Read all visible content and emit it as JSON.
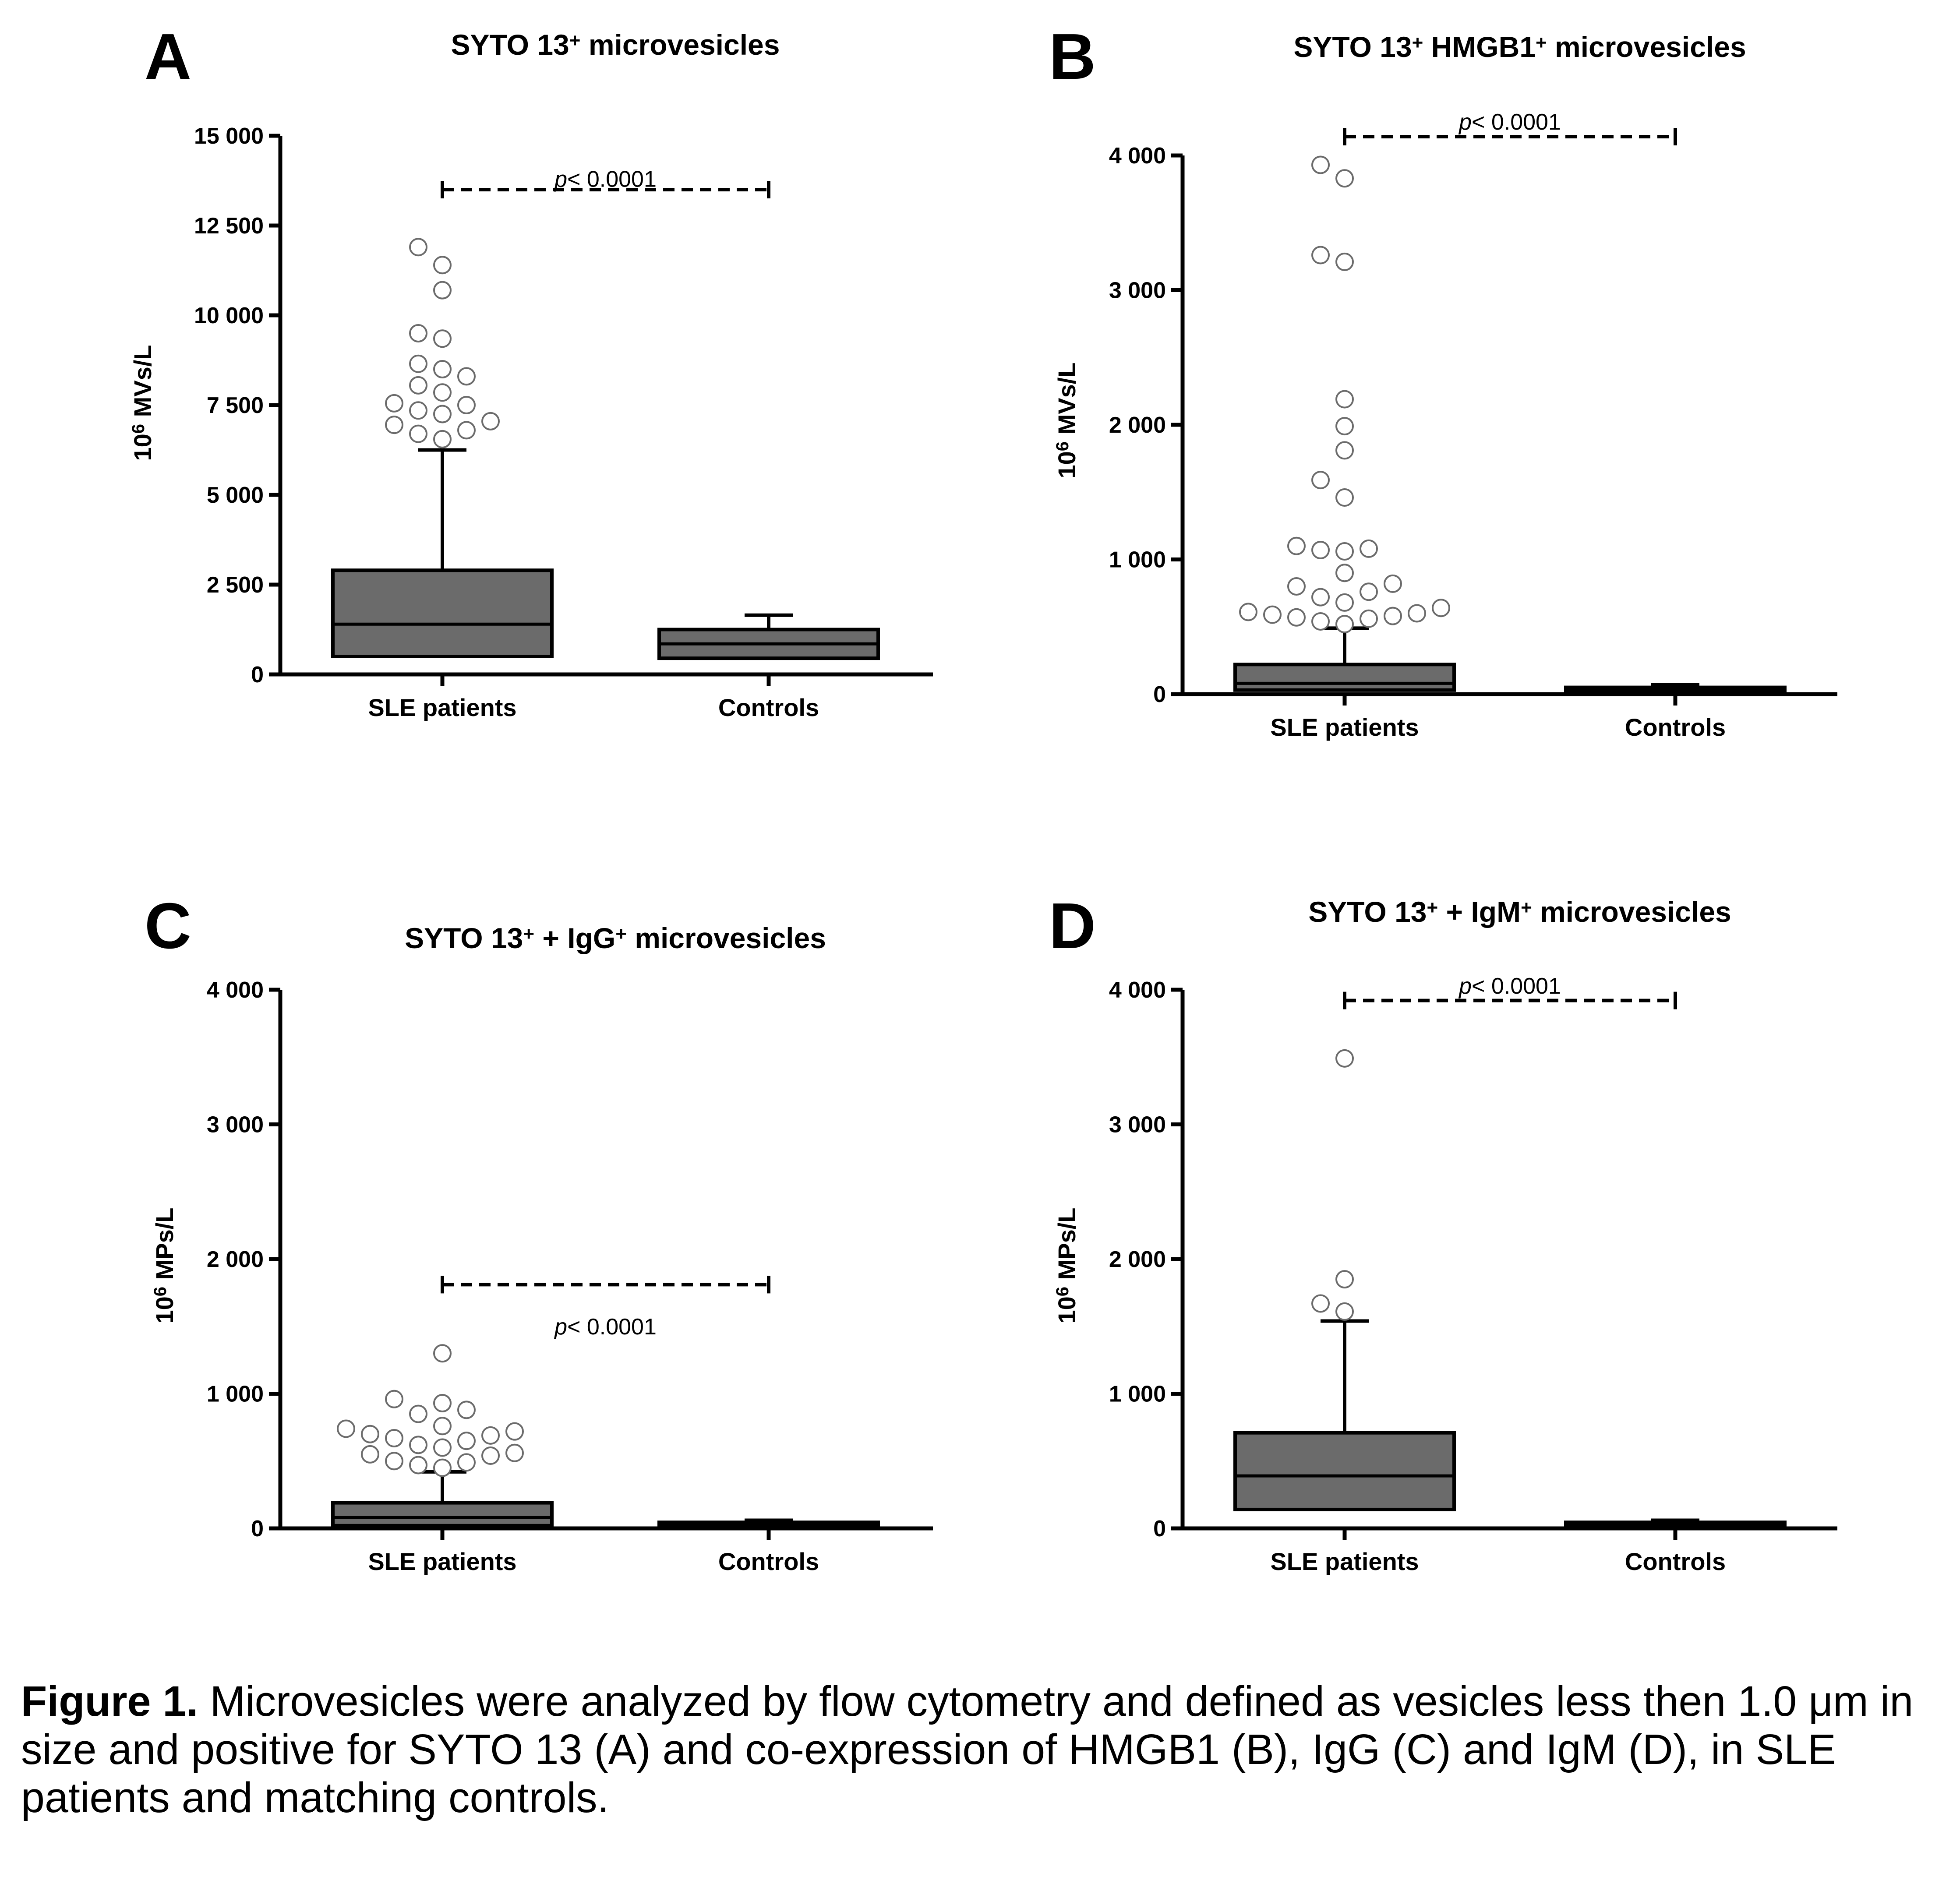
{
  "figure": {
    "caption_label": "Figure 1.",
    "caption_text": "Microvesicles were analyzed by flow cytometry and defined as vesicles less then 1.0 μm in size and positive for SYTO 13 (A) and co-expression of HMGB1 (B), IgG (C) and IgM (D), in SLE patients and matching controls."
  },
  "chart_data": [
    {
      "panel": "A",
      "type": "box",
      "title": "SYTO 13",
      "title_sup": "+",
      "title_rest": " microvesicles",
      "title_parts": [
        [
          "SYTO 13",
          ""
        ],
        [
          "+",
          "sup"
        ],
        [
          " microvesicles",
          ""
        ]
      ],
      "ylabel": "MVs/L",
      "ylabel_prefix": "10",
      "ylabel_exp": "6",
      "ylim": [
        0,
        15000
      ],
      "yticks": [
        0,
        2500,
        5000,
        7500,
        10000,
        12500,
        15000
      ],
      "ytick_labels": [
        "0",
        "2 500",
        "5 000",
        "7 500",
        "10 000",
        "12 500",
        "15 000"
      ],
      "categories": [
        "SLE patients",
        "Controls"
      ],
      "boxes": [
        {
          "q1": 500,
          "median": 1400,
          "q3": 2900,
          "whisker_low": 0,
          "whisker_high": 6250,
          "outliers": [
            6550,
            6700,
            6800,
            6950,
            7050,
            7250,
            7350,
            7500,
            7550,
            7850,
            8050,
            8300,
            8500,
            8650,
            9350,
            9500,
            10700,
            11400,
            11900
          ]
        },
        {
          "q1": 450,
          "median": 850,
          "q3": 1250,
          "whisker_low": 0,
          "whisker_high": 1650,
          "outliers": []
        }
      ],
      "pvalue_label": "p",
      "pvalue_rest": "< 0.0001",
      "pvalue_bracket_y": 13500,
      "pvalue_text_y": 13800
    },
    {
      "panel": "B",
      "type": "box",
      "title_parts": [
        [
          "SYTO 13",
          ""
        ],
        [
          "+",
          "sup"
        ],
        [
          " HMGB1",
          ""
        ],
        [
          "+",
          "sup"
        ],
        [
          " microvesicles",
          ""
        ]
      ],
      "ylabel": "MVs/L",
      "ylabel_prefix": "10",
      "ylabel_exp": "6",
      "ylim": [
        0,
        4000
      ],
      "yticks": [
        0,
        1000,
        2000,
        3000,
        4000
      ],
      "ytick_labels": [
        "0",
        "1 000",
        "2 000",
        "3 000",
        "4 000"
      ],
      "categories": [
        "SLE patients",
        "Controls"
      ],
      "boxes": [
        {
          "q1": 30,
          "median": 80,
          "q3": 220,
          "whisker_low": 0,
          "whisker_high": 490,
          "outliers": [
            520,
            540,
            560,
            570,
            580,
            590,
            600,
            610,
            640,
            680,
            720,
            760,
            800,
            820,
            900,
            1060,
            1070,
            1080,
            1100,
            1460,
            1590,
            1810,
            1990,
            2190,
            3210,
            3260,
            3830,
            3930
          ]
        },
        {
          "q1": 10,
          "median": 30,
          "q3": 50,
          "whisker_low": 0,
          "whisker_high": 70,
          "outliers": []
        }
      ],
      "pvalue_label": "p",
      "pvalue_rest": "< 0.0001",
      "pvalue_bracket_y": 4140,
      "pvalue_text_y": 4250
    },
    {
      "panel": "C",
      "type": "box",
      "title_parts": [
        [
          "SYTO 13",
          ""
        ],
        [
          "+",
          "sup"
        ],
        [
          " + IgG",
          ""
        ],
        [
          "+",
          "sup"
        ],
        [
          " microvesicles",
          ""
        ]
      ],
      "ylabel": "MPs/L",
      "ylabel_prefix": "10",
      "ylabel_exp": "6",
      "ylim": [
        0,
        4000
      ],
      "yticks": [
        0,
        1000,
        2000,
        3000,
        4000
      ],
      "ytick_labels": [
        "0",
        "1 000",
        "2 000",
        "3 000",
        "4 000"
      ],
      "categories": [
        "SLE patients",
        "Controls"
      ],
      "boxes": [
        {
          "q1": 20,
          "median": 80,
          "q3": 190,
          "whisker_low": 0,
          "whisker_high": 420,
          "outliers": [
            450,
            470,
            490,
            500,
            540,
            550,
            560,
            600,
            620,
            650,
            670,
            690,
            700,
            720,
            740,
            760,
            850,
            880,
            930,
            960,
            1300
          ]
        },
        {
          "q1": 5,
          "median": 25,
          "q3": 45,
          "whisker_low": 0,
          "whisker_high": 60,
          "outliers": []
        }
      ],
      "pvalue_label": "p",
      "pvalue_rest": "< 0.0001",
      "pvalue_bracket_y": 1810,
      "pvalue_text_y": 1500
    },
    {
      "panel": "D",
      "type": "box",
      "title_parts": [
        [
          "SYTO 13",
          ""
        ],
        [
          "+",
          "sup"
        ],
        [
          " + IgM",
          ""
        ],
        [
          "+",
          "sup"
        ],
        [
          " microvesicles",
          ""
        ]
      ],
      "ylabel": "MPs/L",
      "ylabel_prefix": "10",
      "ylabel_exp": "6",
      "ylim": [
        0,
        4000
      ],
      "yticks": [
        0,
        1000,
        2000,
        3000,
        4000
      ],
      "ytick_labels": [
        "0",
        "1 000",
        "2 000",
        "3 000",
        "4 000"
      ],
      "categories": [
        "SLE patients",
        "Controls"
      ],
      "boxes": [
        {
          "q1": 140,
          "median": 390,
          "q3": 710,
          "whisker_low": 0,
          "whisker_high": 1540,
          "outliers": [
            1610,
            1670,
            1850,
            3490
          ]
        },
        {
          "q1": 5,
          "median": 25,
          "q3": 45,
          "whisker_low": 0,
          "whisker_high": 60,
          "outliers": []
        }
      ],
      "pvalue_label": "p",
      "pvalue_rest": "< 0.0001",
      "pvalue_bracket_y": 3920,
      "pvalue_text_y": 4030
    }
  ],
  "colors": {
    "box_fill": "#6b6b6b",
    "line": "#000000",
    "outlier_fill": "#ffffff",
    "outlier_stroke": "#6b6b6b"
  }
}
